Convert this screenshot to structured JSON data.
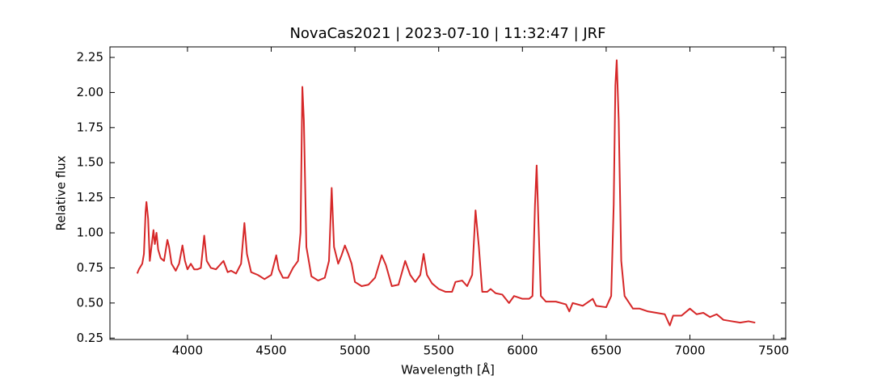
{
  "chart_data": {
    "type": "line",
    "title": "NovaCas2021 | 2023-07-10 | 11:32:47 | JRF",
    "x_label": "Wavelength [Å]",
    "y_label": "Relative flux",
    "color": "#d62728",
    "xlim": [
      3537,
      7572
    ],
    "ylim": [
      0.24,
      2.325
    ],
    "xticks": [
      4000,
      4500,
      5000,
      5500,
      6000,
      6500,
      7000,
      7500
    ],
    "yticks": [
      {
        "value": 0.25,
        "label": "0.25"
      },
      {
        "value": 0.5,
        "label": "0.50"
      },
      {
        "value": 0.75,
        "label": "0.75"
      },
      {
        "value": 1.0,
        "label": "1.00"
      },
      {
        "value": 1.25,
        "label": "1.25"
      },
      {
        "value": 1.5,
        "label": "1.50"
      },
      {
        "value": 1.75,
        "label": "1.75"
      },
      {
        "value": 2.0,
        "label": "2.00"
      },
      {
        "value": 2.25,
        "label": "2.25"
      }
    ],
    "x": [
      3700,
      3710,
      3730,
      3740,
      3750,
      3755,
      3765,
      3775,
      3785,
      3797,
      3805,
      3815,
      3825,
      3840,
      3860,
      3880,
      3890,
      3905,
      3930,
      3950,
      3970,
      3985,
      4000,
      4020,
      4040,
      4060,
      4080,
      4100,
      4115,
      4140,
      4170,
      4200,
      4215,
      4240,
      4260,
      4290,
      4320,
      4340,
      4355,
      4380,
      4420,
      4460,
      4500,
      4530,
      4545,
      4570,
      4600,
      4630,
      4660,
      4675,
      4686,
      4695,
      4710,
      4740,
      4780,
      4820,
      4845,
      4861,
      4875,
      4900,
      4920,
      4940,
      4960,
      4980,
      5000,
      5040,
      5080,
      5120,
      5160,
      5185,
      5220,
      5260,
      5300,
      5330,
      5360,
      5390,
      5410,
      5430,
      5460,
      5500,
      5540,
      5580,
      5600,
      5640,
      5670,
      5700,
      5720,
      5740,
      5760,
      5790,
      5810,
      5840,
      5880,
      5920,
      5950,
      6000,
      6040,
      6060,
      6075,
      6085,
      6095,
      6110,
      6140,
      6200,
      6260,
      6280,
      6300,
      6360,
      6420,
      6440,
      6500,
      6530,
      6545,
      6555,
      6563,
      6575,
      6590,
      6610,
      6660,
      6700,
      6750,
      6800,
      6850,
      6880,
      6900,
      6950,
      7000,
      7040,
      7080,
      7120,
      7160,
      7200,
      7250,
      7300,
      7350,
      7390
    ],
    "values": [
      0.71,
      0.74,
      0.78,
      0.85,
      1.15,
      1.22,
      1.1,
      0.8,
      0.9,
      1.02,
      0.92,
      1.0,
      0.88,
      0.82,
      0.8,
      0.95,
      0.9,
      0.78,
      0.73,
      0.78,
      0.91,
      0.8,
      0.74,
      0.78,
      0.74,
      0.74,
      0.75,
      0.98,
      0.8,
      0.75,
      0.74,
      0.78,
      0.8,
      0.72,
      0.73,
      0.71,
      0.78,
      1.07,
      0.85,
      0.72,
      0.7,
      0.67,
      0.7,
      0.84,
      0.74,
      0.68,
      0.68,
      0.75,
      0.8,
      1.0,
      2.04,
      1.8,
      0.9,
      0.69,
      0.66,
      0.68,
      0.8,
      1.32,
      0.9,
      0.78,
      0.84,
      0.91,
      0.85,
      0.78,
      0.65,
      0.62,
      0.63,
      0.68,
      0.84,
      0.77,
      0.62,
      0.63,
      0.8,
      0.7,
      0.65,
      0.7,
      0.85,
      0.7,
      0.64,
      0.6,
      0.58,
      0.58,
      0.65,
      0.66,
      0.62,
      0.7,
      1.16,
      0.9,
      0.58,
      0.58,
      0.6,
      0.57,
      0.56,
      0.5,
      0.55,
      0.53,
      0.53,
      0.55,
      1.2,
      1.48,
      1.1,
      0.55,
      0.51,
      0.51,
      0.49,
      0.44,
      0.5,
      0.48,
      0.53,
      0.48,
      0.47,
      0.55,
      1.2,
      2.05,
      2.23,
      1.8,
      0.8,
      0.55,
      0.46,
      0.46,
      0.44,
      0.43,
      0.42,
      0.34,
      0.41,
      0.41,
      0.46,
      0.42,
      0.43,
      0.4,
      0.42,
      0.38,
      0.37,
      0.36,
      0.37,
      0.36
    ]
  }
}
